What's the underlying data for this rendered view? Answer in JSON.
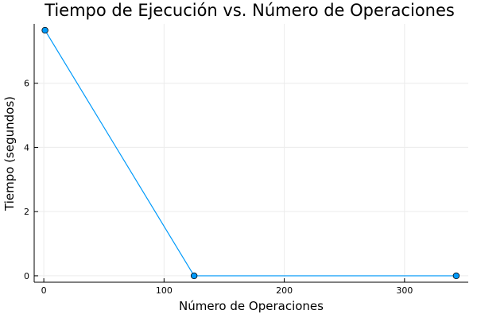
{
  "chart_data": {
    "type": "line",
    "title": "Tiempo de Ejecución vs. Número de Operaciones",
    "xlabel": "Número de Operaciones",
    "ylabel": "Tiempo (segundos)",
    "x": [
      1,
      125,
      343
    ],
    "series": [
      {
        "values": [
          7.65,
          0.0,
          0.0
        ],
        "color": "#009AFA",
        "marker": "circle"
      }
    ],
    "xlim": [
      -8,
      353
    ],
    "ylim": [
      -0.2,
      7.85
    ],
    "xticks": [
      0,
      100,
      200,
      300
    ],
    "yticks": [
      0,
      2,
      4,
      6
    ],
    "grid": true,
    "legend": "none"
  }
}
